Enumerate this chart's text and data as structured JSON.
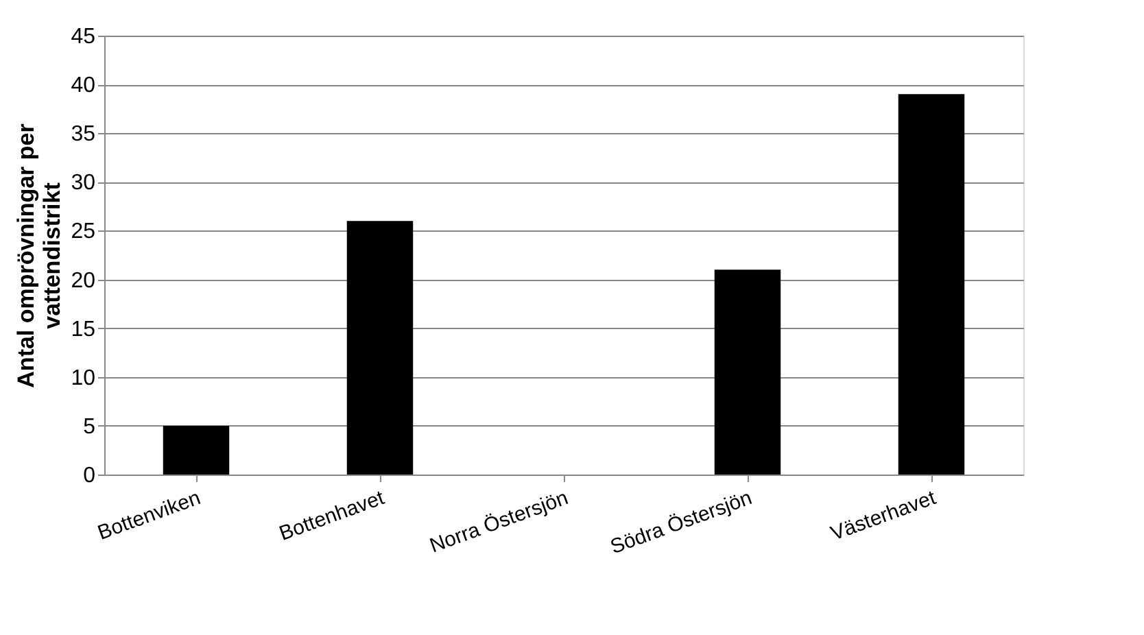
{
  "chart_data": {
    "type": "bar",
    "ylabel": "Antal omprövningar per vattendistrikt",
    "categories": [
      "Bottenviken",
      "Bottenhavet",
      "Norra Östersjön",
      "Södra Östersjön",
      "Västerhavet"
    ],
    "values": [
      5,
      26,
      0,
      21,
      39
    ],
    "color": "#000000",
    "ylim": [
      0,
      45
    ],
    "yticks": [
      0,
      5,
      10,
      15,
      20,
      25,
      30,
      35,
      40,
      45
    ],
    "grid": "y"
  }
}
